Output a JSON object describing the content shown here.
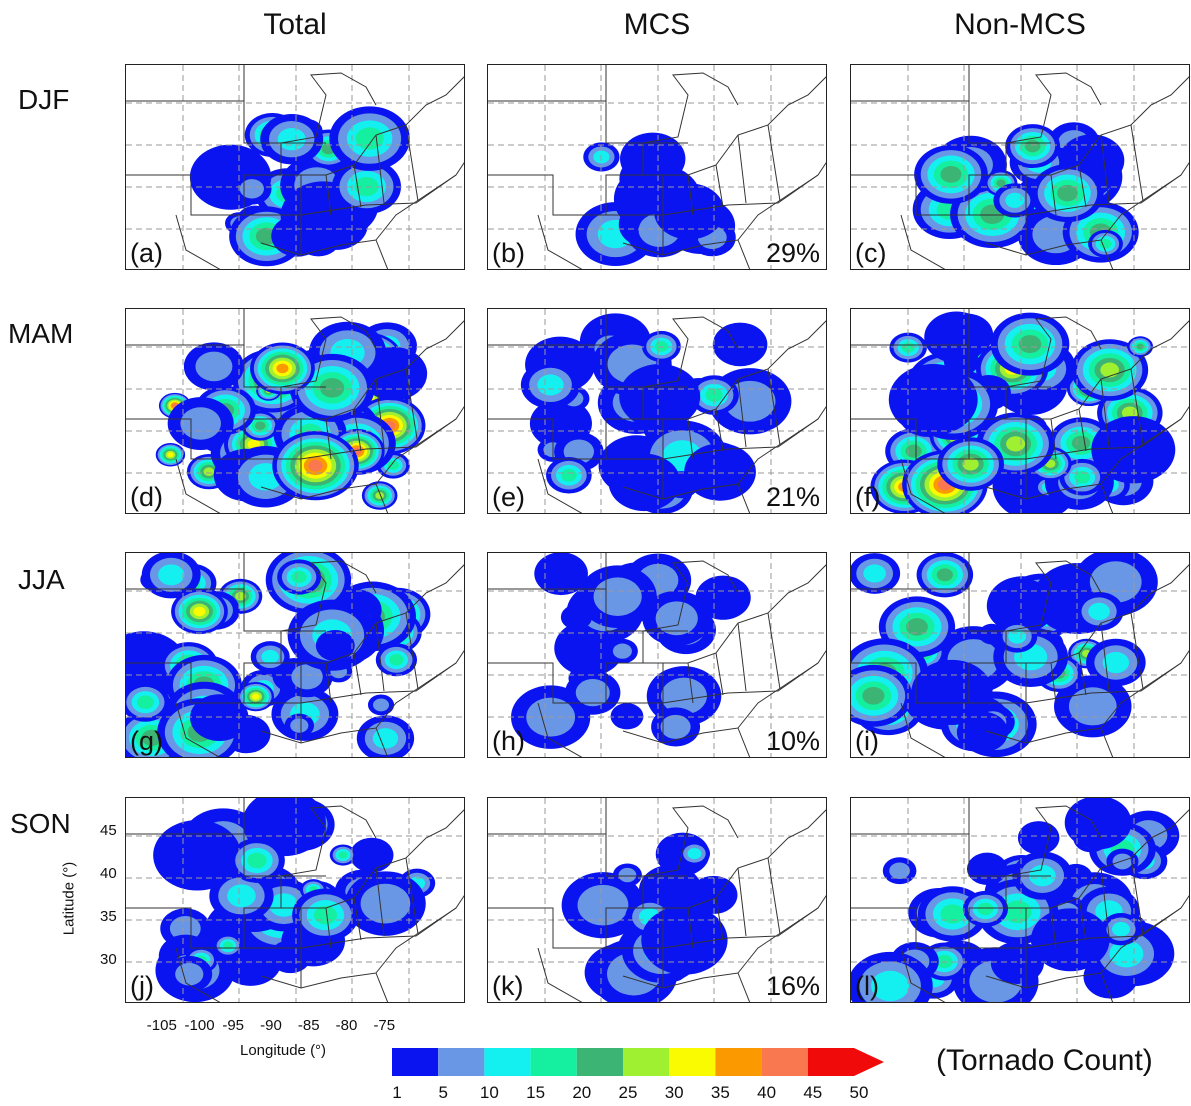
{
  "column_titles": [
    "Total",
    "MCS",
    "Non-MCS"
  ],
  "row_labels": [
    "DJF",
    "MAM",
    "JJA",
    "SON"
  ],
  "panels": [
    {
      "tag": "(a)",
      "pct": ""
    },
    {
      "tag": "(b)",
      "pct": "29%"
    },
    {
      "tag": "(c)",
      "pct": ""
    },
    {
      "tag": "(d)",
      "pct": ""
    },
    {
      "tag": "(e)",
      "pct": "21%"
    },
    {
      "tag": "(f)",
      "pct": ""
    },
    {
      "tag": "(g)",
      "pct": ""
    },
    {
      "tag": "(h)",
      "pct": "10%"
    },
    {
      "tag": "(i)",
      "pct": ""
    },
    {
      "tag": "(j)",
      "pct": ""
    },
    {
      "tag": "(k)",
      "pct": "16%"
    },
    {
      "tag": "(l)",
      "pct": ""
    }
  ],
  "chart_data": {
    "type": "heatmap",
    "xlabel": "Longitude (°)",
    "ylabel": "Latitude (°)",
    "x_ticks": [
      "-105",
      "-100",
      "-95",
      "-90",
      "-85",
      "-80",
      "-75"
    ],
    "y_ticks": [
      "30",
      "35",
      "40",
      "45"
    ],
    "xlim": [
      -110,
      -65
    ],
    "ylim": [
      25,
      49
    ],
    "grid": true,
    "colorbar": {
      "title": "(Tornado Count)",
      "levels": [
        1,
        5,
        10,
        15,
        20,
        25,
        30,
        35,
        40,
        45,
        50
      ],
      "colors": [
        "#0a14f0",
        "#6a96e6",
        "#14f0f0",
        "#14f0a0",
        "#3cb474",
        "#a0f032",
        "#fafa00",
        "#fa9a00",
        "#fa7850",
        "#f00a0a"
      ],
      "extend": "max"
    },
    "mcs_fraction_percent": {
      "DJF": 29,
      "MAM": 21,
      "JJA": 10,
      "SON": 16
    }
  }
}
